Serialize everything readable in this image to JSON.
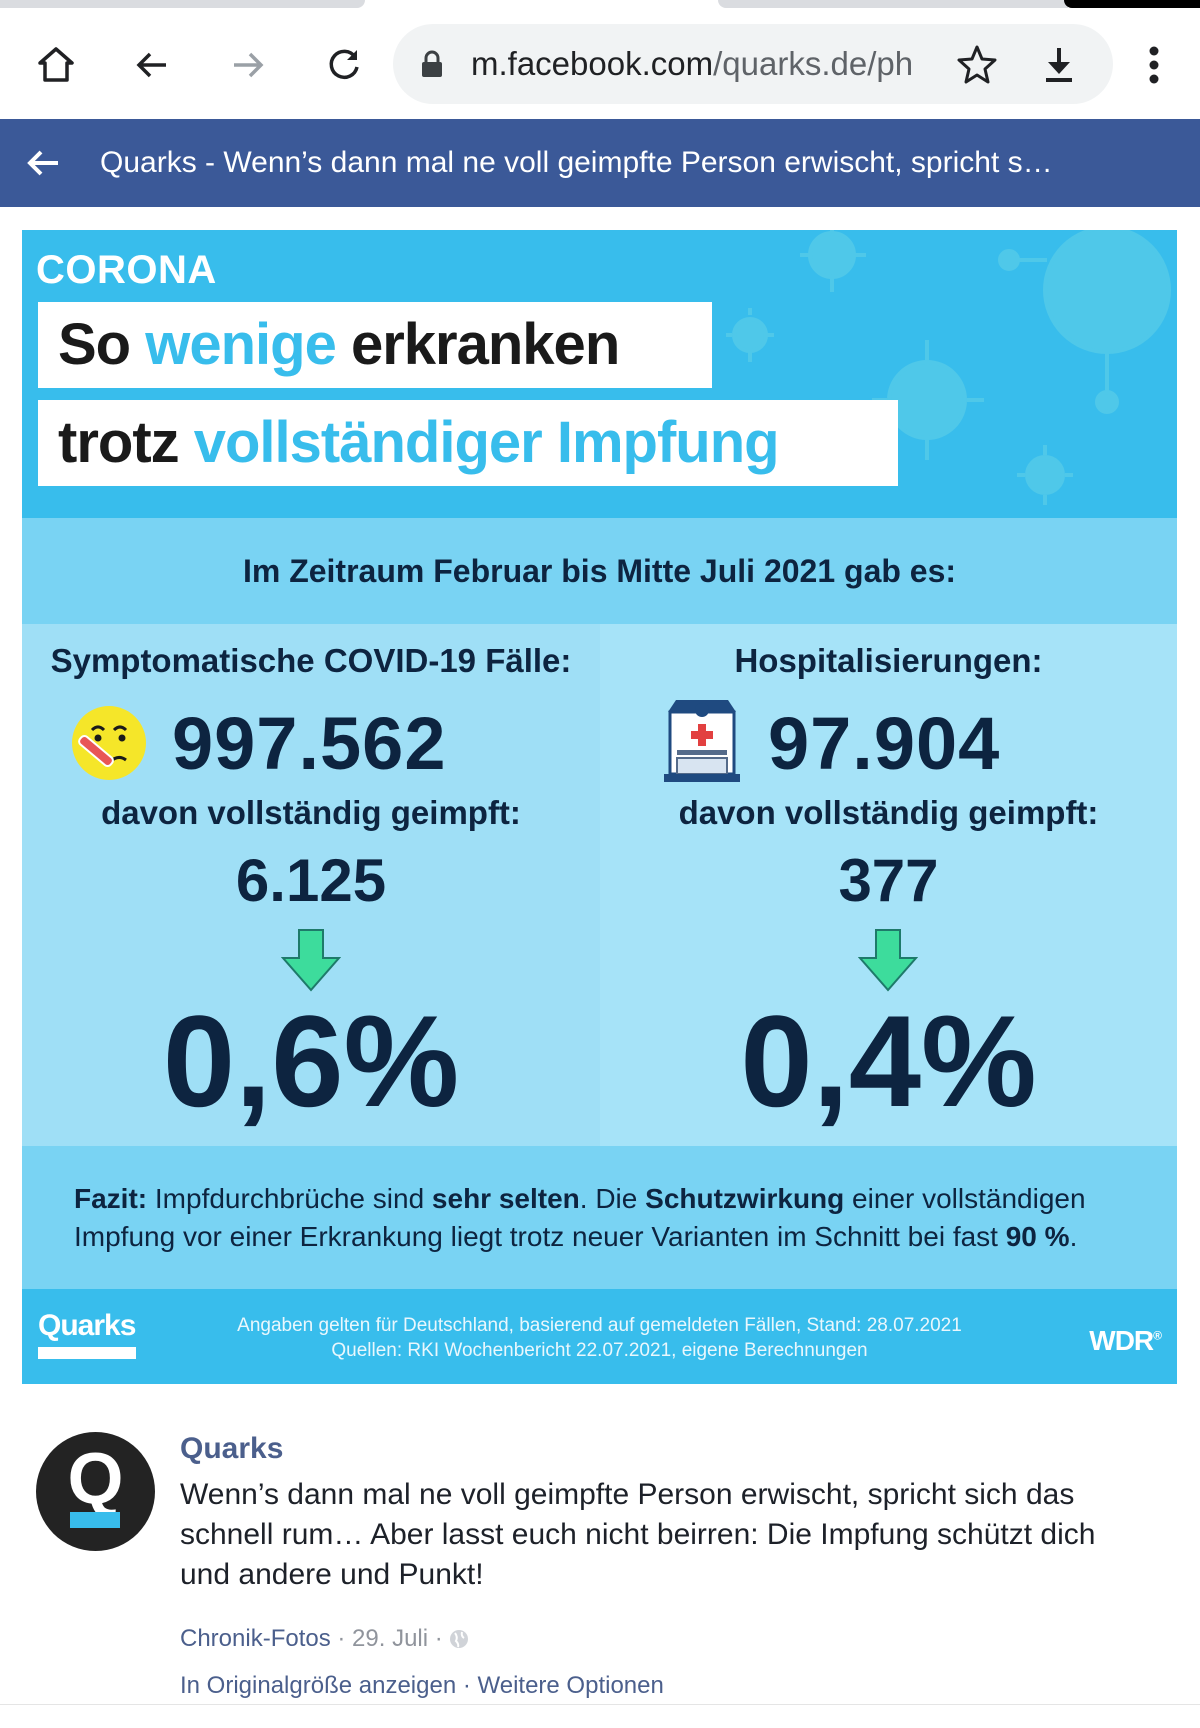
{
  "browser": {
    "url_domain": "m.facebook.com",
    "url_path": "/quarks.de/ph",
    "icons": [
      "home-icon",
      "back-icon",
      "forward-icon",
      "reload-icon",
      "lock-icon",
      "star-icon",
      "download-icon",
      "more-vert-icon"
    ]
  },
  "titlebar": {
    "title": "Quarks - Wenn’s dann mal ne voll geimpfte Person erwischt, spricht s…"
  },
  "infographic": {
    "kicker": "CORONA",
    "headline1": {
      "a": "So ",
      "b": "wenige",
      "c": " erkranken"
    },
    "headline2": {
      "a": "trotz ",
      "b": "vollständiger Impfung"
    },
    "period": "Im Zeitraum Februar bis Mitte Juli 2021 gab es:",
    "left": {
      "label": "Symptomatische COVID-19 Fälle:",
      "total": "997.562",
      "sub": "davon vollständig geimpft:",
      "count": "6.125",
      "percent": "0,6%"
    },
    "right": {
      "label": "Hospitalisierungen:",
      "total": "97.904",
      "sub": "davon vollständig geimpft:",
      "count": "377",
      "percent": "0,4%"
    },
    "fazit": {
      "p1": "Fazit:",
      "p2": " Impfdurchbrüche sind ",
      "p3": "sehr selten",
      "p4": ". Die ",
      "p5": "Schutzwirkung",
      "p6": " einer vollständigen Impfung vor einer Erkrankung liegt trotz neuer Varianten im Schnitt bei fast ",
      "p7": "90 %",
      "p8": "."
    },
    "footer": {
      "logo": "Quarks",
      "source1": "Angaben gelten für Deutschland, basierend auf gemeldeten Fällen, Stand: 28.07.2021",
      "source2": "Quellen:  RKI Wochenbericht 22.07.2021, eigene Berechnungen",
      "wdr": "WDR",
      "wdr_mark": "®"
    },
    "colors": {
      "blue": "#38bdec",
      "navy": "#0d2440",
      "light": "#a6e3f8",
      "mid": "#79d3f3",
      "arrow": "#3ddc9c"
    }
  },
  "post": {
    "author": "Quarks",
    "avatar_letter": "Q",
    "text": "Wenn’s dann mal ne voll geimpfte Person erwischt, spricht sich das schnell rum… Aber lasst euch nicht beirren: Die Impfung schützt dich und andere und Punkt!",
    "meta_album": "Chronik-Fotos",
    "meta_sep1": " · ",
    "meta_date": "29. Juli",
    "meta_sep2": " · ",
    "link_full": "In Originalgröße anzeigen",
    "link_sep": " · ",
    "link_more": "Weitere Optionen"
  }
}
